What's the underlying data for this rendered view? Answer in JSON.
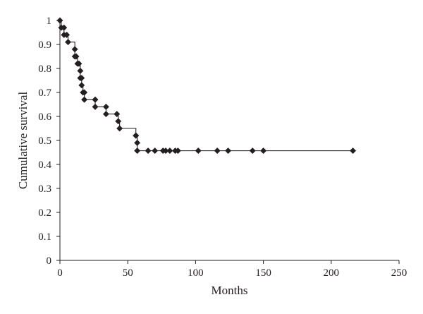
{
  "chart_data": {
    "type": "line",
    "title": "",
    "xlabel": "Months",
    "ylabel": "Cumulative survival",
    "xlim": [
      0,
      250
    ],
    "ylim": [
      0,
      1
    ],
    "x_ticks": [
      0,
      50,
      100,
      150,
      200,
      250
    ],
    "y_ticks": [
      0,
      0.1,
      0.2,
      0.3,
      0.4,
      0.5,
      0.6,
      0.7,
      0.8,
      0.9,
      1
    ],
    "grid": false,
    "legend": "none",
    "line_color": "#231f20",
    "marker": "diamond",
    "series": [
      {
        "step": true,
        "x": [
          0,
          1,
          3,
          3,
          5,
          6,
          11,
          11,
          12,
          13,
          14,
          15,
          15,
          16,
          16,
          17,
          18,
          18,
          26,
          26,
          34,
          34,
          42,
          43,
          44,
          56,
          56,
          57,
          57,
          65,
          70,
          76,
          78,
          81,
          85,
          87,
          102,
          116,
          124,
          142,
          150,
          216
        ],
        "y": [
          1.0,
          0.97,
          0.97,
          0.94,
          0.94,
          0.91,
          0.88,
          0.85,
          0.85,
          0.82,
          0.82,
          0.79,
          0.76,
          0.76,
          0.73,
          0.7,
          0.7,
          0.67,
          0.67,
          0.64,
          0.64,
          0.61,
          0.61,
          0.58,
          0.55,
          0.52,
          0.52,
          0.49,
          0.457,
          0.457,
          0.457,
          0.457,
          0.457,
          0.457,
          0.457,
          0.457,
          0.457,
          0.457,
          0.457,
          0.457,
          0.457,
          0.457
        ]
      }
    ]
  }
}
